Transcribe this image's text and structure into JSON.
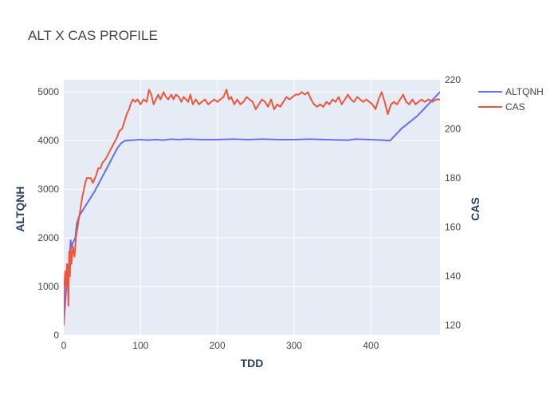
{
  "chart_data": {
    "type": "line",
    "title": "ALT X CAS PROFILE",
    "xlabel": "TDD",
    "ylabel": "ALTQNH",
    "y2label": "CAS",
    "xlim": [
      0,
      490
    ],
    "ylim": [
      0,
      5250
    ],
    "y2lim": [
      116,
      220
    ],
    "x_ticks": [
      0,
      100,
      200,
      300,
      400
    ],
    "y_ticks": [
      0,
      1000,
      2000,
      3000,
      4000,
      5000
    ],
    "y2_ticks": [
      120,
      140,
      160,
      180,
      200,
      220
    ],
    "grid": true,
    "legend_position": "top-right",
    "series": [
      {
        "name": "ALTQNH",
        "axis": "left",
        "color": "#636efa",
        "points": [
          [
            0,
            250
          ],
          [
            3,
            900
          ],
          [
            5,
            1300
          ],
          [
            7,
            1500
          ],
          [
            9,
            1950
          ],
          [
            10,
            1800
          ],
          [
            12,
            1900
          ],
          [
            15,
            2000
          ],
          [
            17,
            2300
          ],
          [
            20,
            2450
          ],
          [
            30,
            2700
          ],
          [
            40,
            2950
          ],
          [
            50,
            3250
          ],
          [
            60,
            3550
          ],
          [
            70,
            3850
          ],
          [
            75,
            3950
          ],
          [
            80,
            4000
          ],
          [
            100,
            4020
          ],
          [
            110,
            4010
          ],
          [
            120,
            4020
          ],
          [
            130,
            4010
          ],
          [
            140,
            4030
          ],
          [
            150,
            4020
          ],
          [
            160,
            4030
          ],
          [
            180,
            4020
          ],
          [
            200,
            4020
          ],
          [
            220,
            4030
          ],
          [
            240,
            4020
          ],
          [
            260,
            4030
          ],
          [
            280,
            4020
          ],
          [
            300,
            4020
          ],
          [
            320,
            4030
          ],
          [
            340,
            4020
          ],
          [
            370,
            4010
          ],
          [
            380,
            4030
          ],
          [
            400,
            4020
          ],
          [
            415,
            4010
          ],
          [
            425,
            4000
          ],
          [
            440,
            4250
          ],
          [
            460,
            4500
          ],
          [
            475,
            4750
          ],
          [
            490,
            5000
          ]
        ]
      },
      {
        "name": "CAS",
        "axis": "right",
        "color": "#ef553b",
        "points": [
          [
            0,
            120
          ],
          [
            1,
            138
          ],
          [
            2,
            142
          ],
          [
            3,
            136
          ],
          [
            4,
            145
          ],
          [
            5,
            142
          ],
          [
            6,
            128
          ],
          [
            7,
            150
          ],
          [
            8,
            140
          ],
          [
            9,
            152
          ],
          [
            10,
            145
          ],
          [
            12,
            152
          ],
          [
            14,
            148
          ],
          [
            16,
            156
          ],
          [
            20,
            164
          ],
          [
            24,
            172
          ],
          [
            28,
            178
          ],
          [
            30,
            180
          ],
          [
            35,
            180
          ],
          [
            38,
            178
          ],
          [
            42,
            181
          ],
          [
            45,
            184
          ],
          [
            48,
            184
          ],
          [
            50,
            186
          ],
          [
            55,
            188
          ],
          [
            60,
            191
          ],
          [
            65,
            194
          ],
          [
            70,
            197
          ],
          [
            72,
            199
          ],
          [
            76,
            200
          ],
          [
            78,
            202
          ],
          [
            80,
            204
          ],
          [
            82,
            206
          ],
          [
            85,
            208
          ],
          [
            87,
            210
          ],
          [
            90,
            212
          ],
          [
            93,
            211
          ],
          [
            96,
            212
          ],
          [
            100,
            210
          ],
          [
            104,
            212
          ],
          [
            108,
            211
          ],
          [
            111,
            216
          ],
          [
            114,
            214
          ],
          [
            117,
            210
          ],
          [
            120,
            212
          ],
          [
            123,
            214
          ],
          [
            126,
            212
          ],
          [
            130,
            215
          ],
          [
            133,
            213
          ],
          [
            136,
            212
          ],
          [
            140,
            214
          ],
          [
            143,
            212
          ],
          [
            146,
            214
          ],
          [
            150,
            213
          ],
          [
            153,
            211
          ],
          [
            156,
            213
          ],
          [
            159,
            212
          ],
          [
            162,
            211
          ],
          [
            165,
            214
          ],
          [
            168,
            210
          ],
          [
            172,
            212
          ],
          [
            176,
            210
          ],
          [
            180,
            211
          ],
          [
            184,
            212
          ],
          [
            188,
            210
          ],
          [
            192,
            211
          ],
          [
            196,
            212
          ],
          [
            200,
            211
          ],
          [
            204,
            212
          ],
          [
            208,
            213
          ],
          [
            212,
            216
          ],
          [
            215,
            212
          ],
          [
            218,
            213
          ],
          [
            222,
            210
          ],
          [
            226,
            212
          ],
          [
            230,
            210
          ],
          [
            234,
            211
          ],
          [
            238,
            213
          ],
          [
            242,
            212
          ],
          [
            246,
            211
          ],
          [
            250,
            208
          ],
          [
            254,
            210
          ],
          [
            258,
            212
          ],
          [
            262,
            211
          ],
          [
            266,
            209
          ],
          [
            270,
            212
          ],
          [
            274,
            208
          ],
          [
            278,
            210
          ],
          [
            282,
            209
          ],
          [
            286,
            211
          ],
          [
            290,
            213
          ],
          [
            294,
            212
          ],
          [
            298,
            213
          ],
          [
            302,
            214
          ],
          [
            306,
            214
          ],
          [
            310,
            215
          ],
          [
            314,
            214
          ],
          [
            318,
            215
          ],
          [
            322,
            212
          ],
          [
            326,
            210
          ],
          [
            330,
            209
          ],
          [
            334,
            210
          ],
          [
            338,
            209
          ],
          [
            342,
            211
          ],
          [
            346,
            210
          ],
          [
            350,
            212
          ],
          [
            354,
            211
          ],
          [
            358,
            213
          ],
          [
            362,
            210
          ],
          [
            366,
            212
          ],
          [
            370,
            214
          ],
          [
            374,
            212
          ],
          [
            378,
            211
          ],
          [
            382,
            213
          ],
          [
            386,
            212
          ],
          [
            390,
            211
          ],
          [
            394,
            212
          ],
          [
            398,
            211
          ],
          [
            402,
            210
          ],
          [
            406,
            208
          ],
          [
            410,
            212
          ],
          [
            414,
            215
          ],
          [
            418,
            211
          ],
          [
            422,
            206
          ],
          [
            426,
            210
          ],
          [
            430,
            211
          ],
          [
            434,
            210
          ],
          [
            438,
            212
          ],
          [
            442,
            214
          ],
          [
            446,
            211
          ],
          [
            450,
            210
          ],
          [
            454,
            212
          ],
          [
            458,
            210
          ],
          [
            462,
            211
          ],
          [
            466,
            212
          ],
          [
            470,
            211
          ],
          [
            475,
            212
          ],
          [
            480,
            211
          ],
          [
            485,
            212
          ],
          [
            490,
            212
          ]
        ]
      }
    ]
  }
}
